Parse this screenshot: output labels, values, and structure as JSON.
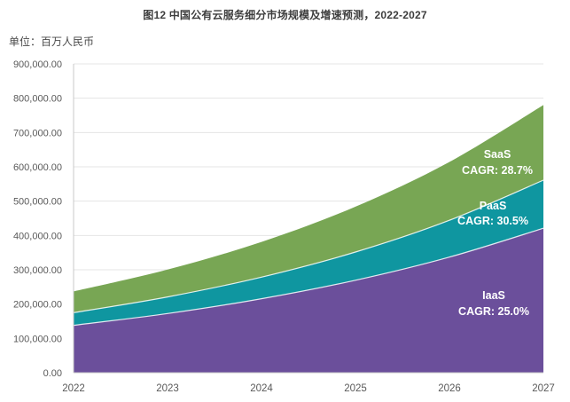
{
  "chart": {
    "title": "图12 中国公有云服务细分市场规模及增速预测，2022-2027",
    "unit_label": "单位：百万人民币"
  },
  "chart_data": {
    "type": "area",
    "stacked": true,
    "title": "图12 中国公有云服务细分市场规模及增速预测，2022-2027",
    "unit": "百万人民币",
    "x": [
      2022,
      2023,
      2024,
      2025,
      2026,
      2027
    ],
    "x_tick_labels": [
      "2022",
      "2023",
      "2024",
      "2025",
      "2026",
      "2027"
    ],
    "series": [
      {
        "name": "IaaS",
        "cagr_label": "CAGR: 25.0%",
        "cagr_percent": 25.0,
        "color": "#6b4f9b",
        "values": [
          138000,
          172500,
          215600,
          269500,
          336900,
          421100
        ]
      },
      {
        "name": "PaaS",
        "cagr_label": "CAGR: 30.5%",
        "cagr_percent": 30.5,
        "color": "#0f96a0",
        "values": [
          37000,
          48300,
          63000,
          82200,
          107300,
          140000
        ]
      },
      {
        "name": "SaaS",
        "cagr_label": "CAGR: 28.7%",
        "cagr_percent": 28.7,
        "color": "#78a654",
        "values": [
          62000,
          79800,
          102700,
          132100,
          170100,
          218900
        ]
      }
    ],
    "ylim": [
      0,
      900000
    ],
    "y_tick_step": 100000,
    "y_tick_labels": [
      "0.00",
      "100,000.00",
      "200,000.00",
      "300,000.00",
      "400,000.00",
      "500,000.00",
      "600,000.00",
      "700,000.00",
      "800,000.00",
      "900,000.00"
    ],
    "grid": true,
    "legend_position": "labels-inside-areas"
  }
}
